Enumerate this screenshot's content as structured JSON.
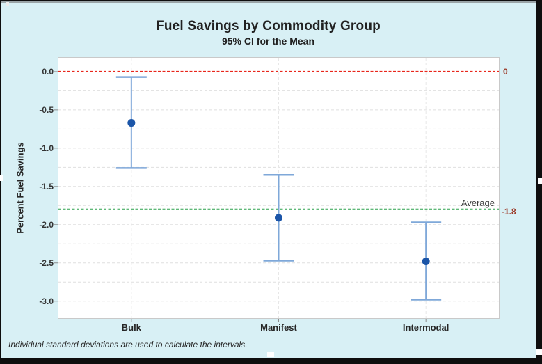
{
  "window": {
    "background": "#d8f0f5",
    "frame_border_color": "#0e0e0e",
    "selection_handles": [
      "top-left",
      "left-middle",
      "right-middle",
      "bottom-center",
      "bottom-right"
    ]
  },
  "chart_data": {
    "type": "scatter",
    "chart_kind": "interval_plot_95ci",
    "title": "Fuel Savings by Commodity Group",
    "subtitle": "95% CI for the Mean",
    "xlabel": "",
    "ylabel": "Percent Fuel Savings",
    "categories": [
      "Bulk",
      "Manifest",
      "Intermodal"
    ],
    "series": [
      {
        "name": "95% CI for the Mean",
        "points": [
          {
            "category": "Bulk",
            "mean": -0.67,
            "ci_low": -1.26,
            "ci_high": -0.07
          },
          {
            "category": "Manifest",
            "mean": -1.91,
            "ci_low": -2.47,
            "ci_high": -1.35
          },
          {
            "category": "Intermodal",
            "mean": -2.48,
            "ci_low": -2.98,
            "ci_high": -1.97
          }
        ]
      }
    ],
    "ylim": [
      -3.23,
      0.19
    ],
    "yticks": [
      "0.0",
      "-0.5",
      "-1.0",
      "-1.5",
      "-2.0",
      "-2.5",
      "-3.0"
    ],
    "minor_grid_step": 0.25,
    "grid": true,
    "legend": "none",
    "reference_lines": [
      {
        "value": 0,
        "label": "0",
        "line_color": "#e8271c",
        "label_color": "#9c3a28",
        "style": "dashed"
      },
      {
        "value": -1.8,
        "label": "-1.8",
        "annotation": "Average",
        "line_color": "#2aa14c",
        "label_color": "#9c3a28",
        "style": "dashed"
      }
    ],
    "footnote": "Individual standard deviations are used to calculate the intervals.",
    "colors": {
      "interval_line": "#7fa8d9",
      "mean_point": "#1b55a8",
      "plot_background": "#ffffff",
      "plot_border": "#c9c9c9",
      "gridline": "#dfdfdf",
      "vertical_gridline": "#e7e7e7",
      "tick": "#8c8c8c",
      "text": "#262626",
      "annotation_text": "#3d3d3d"
    }
  }
}
